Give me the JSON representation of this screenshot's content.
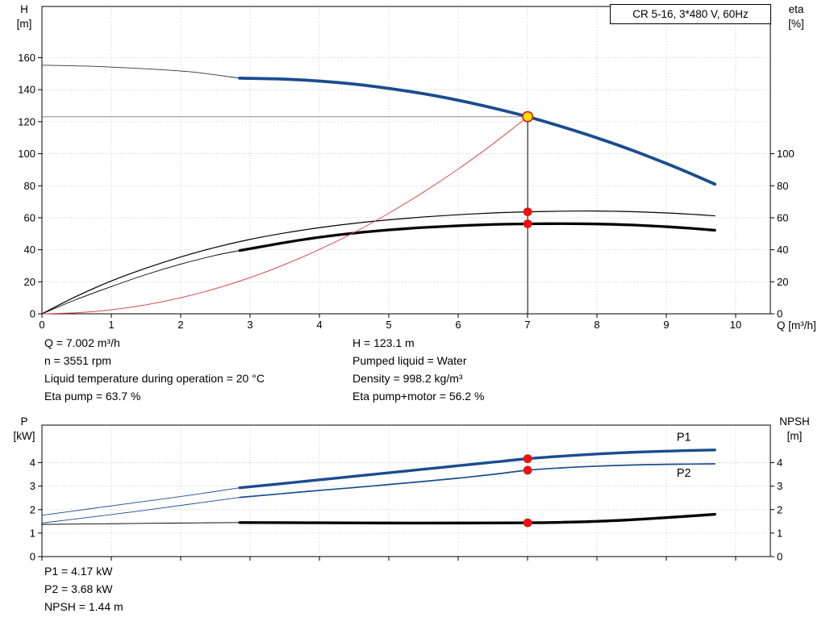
{
  "model_box": {
    "label": "CR 5-16, 3*480 V, 60Hz"
  },
  "axis_labels": {
    "top_left_sym": "H",
    "top_left_unit": "[m]",
    "top_right_sym": "eta",
    "top_right_unit": "[%]",
    "q_axis": "Q [m³/h]",
    "bottom_left_sym": "P",
    "bottom_left_unit": "[kW]",
    "bottom_right_sym": "NPSH",
    "bottom_right_unit": "[m]"
  },
  "results_top": {
    "col1": [
      "Q = 7.002 m³/h",
      "n = 3551 rpm",
      "Liquid temperature during operation = 20 °C",
      "Eta pump = 63.7 %"
    ],
    "col2": [
      "H = 123.1 m",
      "Pumped liquid = Water",
      "Density = 998.2 kg/m³",
      "Eta pump+motor = 56.2 %"
    ]
  },
  "results_bottom": [
    "P1 = 4.17 kW",
    "P2 = 3.68 kW",
    "NPSH = 1.44 m"
  ],
  "chart_data": [
    {
      "type": "line",
      "title": "CR 5-16, 3*480 V, 60Hz",
      "xlabel": "Q [m³/h]",
      "ylabel_left": "H [m]",
      "ylabel_right": "eta [%]",
      "xlim": [
        0,
        10.5
      ],
      "ylim_left": [
        0,
        192
      ],
      "ylim_right": [
        0,
        192
      ],
      "xticks": [
        0,
        1,
        2,
        3,
        4,
        5,
        6,
        7,
        8,
        9,
        10
      ],
      "yticks_left": [
        0,
        20,
        40,
        60,
        80,
        100,
        120,
        140,
        160
      ],
      "yticks_right": [
        0,
        20,
        40,
        60,
        80,
        100
      ],
      "grid": true,
      "show_xtick_labels": true,
      "duty_point": {
        "Q": 7.002,
        "H": 123.1,
        "eta_pump": 63.7,
        "eta_pump_motor": 56.2
      },
      "series": [
        {
          "name": "h-curve-lead",
          "color": "#333333",
          "width": 0.9,
          "points": [
            [
              0,
              155.3
            ],
            [
              0.8,
              154.5
            ],
            [
              1.6,
              152.8
            ],
            [
              2.2,
              150.9
            ],
            [
              2.85,
              147.2
            ]
          ]
        },
        {
          "name": "h-curve",
          "color": "#1a4c8f",
          "width": 3.8,
          "points": [
            [
              2.85,
              147.2
            ],
            [
              3.5,
              146.6
            ],
            [
              4,
              145.4
            ],
            [
              4.5,
              143.5
            ],
            [
              5,
              140.8
            ],
            [
              5.5,
              137.5
            ],
            [
              6,
              133.4
            ],
            [
              6.5,
              128.6
            ],
            [
              7.002,
              123.1
            ],
            [
              7.5,
              116.8
            ],
            [
              8,
              109.9
            ],
            [
              8.5,
              102.3
            ],
            [
              9,
              93.9
            ],
            [
              9.35,
              87.6
            ],
            [
              9.7,
              81
            ]
          ]
        },
        {
          "name": "eta-pump",
          "color": "#000000",
          "width": 1.2,
          "points": [
            [
              0,
              0
            ],
            [
              0.5,
              11
            ],
            [
              1,
              20.5
            ],
            [
              1.5,
              28.5
            ],
            [
              2,
              35.5
            ],
            [
              2.5,
              41.5
            ],
            [
              3,
              46.5
            ],
            [
              3.5,
              50.5
            ],
            [
              4,
              53.8
            ],
            [
              4.5,
              56.5
            ],
            [
              5,
              58.7
            ],
            [
              5.5,
              60.5
            ],
            [
              6,
              61.9
            ],
            [
              6.5,
              63
            ],
            [
              7.002,
              63.7
            ],
            [
              7.5,
              64.1
            ],
            [
              8,
              64.2
            ],
            [
              8.5,
              63.8
            ],
            [
              9,
              63
            ],
            [
              9.35,
              62.2
            ],
            [
              9.7,
              61.2
            ]
          ]
        },
        {
          "name": "eta-pump-motor-lead",
          "color": "#000000",
          "width": 0.9,
          "points": [
            [
              0,
              0
            ],
            [
              0.5,
              9
            ],
            [
              1,
              17
            ],
            [
              1.5,
              24.5
            ],
            [
              2,
              31
            ],
            [
              2.5,
              36.5
            ],
            [
              2.85,
              39.5
            ]
          ]
        },
        {
          "name": "eta-pump-motor",
          "color": "#000000",
          "width": 3.3,
          "points": [
            [
              2.85,
              39.5
            ],
            [
              3.5,
              44.5
            ],
            [
              4,
              47.8
            ],
            [
              4.5,
              50.4
            ],
            [
              5,
              52.4
            ],
            [
              5.5,
              53.9
            ],
            [
              6,
              55
            ],
            [
              6.5,
              55.8
            ],
            [
              7.002,
              56.2
            ],
            [
              7.5,
              56.3
            ],
            [
              8,
              56.1
            ],
            [
              8.5,
              55.5
            ],
            [
              9,
              54.4
            ],
            [
              9.35,
              53.4
            ],
            [
              9.7,
              52.2
            ]
          ]
        },
        {
          "name": "system-curve",
          "color": "#dd4a4a",
          "width": 1,
          "points": [
            [
              0,
              0
            ],
            [
              0.5,
              0.6
            ],
            [
              1,
              2.5
            ],
            [
              1.5,
              5.6
            ],
            [
              2,
              10
            ],
            [
              2.5,
              15.7
            ],
            [
              3,
              22.6
            ],
            [
              3.5,
              30.8
            ],
            [
              4,
              40.2
            ],
            [
              4.5,
              50.8
            ],
            [
              5,
              62.8
            ],
            [
              5.5,
              76
            ],
            [
              6,
              90.4
            ],
            [
              6.5,
              106.1
            ],
            [
              7.002,
              123.1
            ]
          ]
        }
      ],
      "marker_lines": [
        {
          "name": "duty-head-line",
          "color": "#8a8a8a",
          "width": 1,
          "from": [
            0,
            123.1
          ],
          "to": [
            7.002,
            123.1
          ]
        },
        {
          "name": "duty-flow-line",
          "color": "#000000",
          "width": 1,
          "from": [
            7.002,
            0
          ],
          "to": [
            7.002,
            123.1
          ]
        }
      ],
      "markers": [
        {
          "name": "duty-point",
          "x": 7.002,
          "y": 123.1,
          "r": 6.2,
          "fill": "#ffdd00",
          "stroke": "#e01010",
          "stroke_width": 1.6
        },
        {
          "name": "eta-pump-duty-point",
          "x": 7.002,
          "y": 63.7,
          "r": 5.4,
          "fill": "#ee1111"
        },
        {
          "name": "eta-pump-motor-duty-point",
          "x": 7.002,
          "y": 56.2,
          "r": 5.4,
          "fill": "#ee1111"
        }
      ],
      "curve_labels": []
    },
    {
      "type": "line",
      "title": "",
      "xlabel": "Q [m³/h]",
      "ylabel_left": "P [kW]",
      "ylabel_right": "NPSH [m]",
      "xlim": [
        0,
        10.5
      ],
      "ylim_left": [
        0,
        5.6
      ],
      "ylim_right": [
        0,
        5.6
      ],
      "xticks": [
        0,
        1,
        2,
        3,
        4,
        5,
        6,
        7,
        8,
        9,
        10
      ],
      "yticks_left": [
        0,
        1,
        2,
        3,
        4
      ],
      "yticks_right": [
        0,
        1,
        2,
        3,
        4
      ],
      "grid": true,
      "show_xtick_labels": false,
      "duty_point": {
        "Q": 7.002,
        "P1": 4.17,
        "P2": 3.68,
        "NPSH": 1.44
      },
      "series": [
        {
          "name": "p1-lead",
          "color": "#1a4c8f",
          "width": 0.9,
          "points": [
            [
              0,
              1.76
            ],
            [
              0.7,
              2.04
            ],
            [
              1.4,
              2.32
            ],
            [
              2.1,
              2.6
            ],
            [
              2.85,
              2.93
            ]
          ]
        },
        {
          "name": "p1",
          "color": "#1a4c8f",
          "width": 3.4,
          "points": [
            [
              2.85,
              2.93
            ],
            [
              3.5,
              3.12
            ],
            [
              4,
              3.27
            ],
            [
              4.5,
              3.42
            ],
            [
              5,
              3.57
            ],
            [
              5.5,
              3.72
            ],
            [
              6,
              3.87
            ],
            [
              6.5,
              4.02
            ],
            [
              7.002,
              4.17
            ],
            [
              7.5,
              4.28
            ],
            [
              8,
              4.37
            ],
            [
              8.5,
              4.44
            ],
            [
              9,
              4.49
            ],
            [
              9.35,
              4.52
            ],
            [
              9.7,
              4.54
            ]
          ]
        },
        {
          "name": "p2-lead",
          "color": "#1a4c8f",
          "width": 0.9,
          "points": [
            [
              0,
              1.43
            ],
            [
              0.7,
              1.68
            ],
            [
              1.4,
              1.94
            ],
            [
              2.1,
              2.22
            ],
            [
              2.85,
              2.52
            ]
          ]
        },
        {
          "name": "p2",
          "color": "#1a4c8f",
          "width": 1.7,
          "points": [
            [
              2.85,
              2.52
            ],
            [
              3.5,
              2.69
            ],
            [
              4,
              2.82
            ],
            [
              4.5,
              2.94
            ],
            [
              5,
              3.07
            ],
            [
              5.5,
              3.2
            ],
            [
              6,
              3.34
            ],
            [
              6.5,
              3.5
            ],
            [
              7.002,
              3.68
            ],
            [
              7.5,
              3.78
            ],
            [
              8,
              3.85
            ],
            [
              8.5,
              3.9
            ],
            [
              9,
              3.93
            ],
            [
              9.35,
              3.94
            ],
            [
              9.7,
              3.95
            ]
          ]
        },
        {
          "name": "npsh-lead",
          "color": "#000000",
          "width": 0.9,
          "points": [
            [
              0,
              1.37
            ],
            [
              1,
              1.4
            ],
            [
              2,
              1.43
            ],
            [
              2.85,
              1.45
            ]
          ]
        },
        {
          "name": "npsh",
          "color": "#000000",
          "width": 3.4,
          "points": [
            [
              2.85,
              1.45
            ],
            [
              4,
              1.44
            ],
            [
              5,
              1.43
            ],
            [
              6,
              1.43
            ],
            [
              7.002,
              1.44
            ],
            [
              7.5,
              1.46
            ],
            [
              8,
              1.5
            ],
            [
              8.5,
              1.57
            ],
            [
              9,
              1.66
            ],
            [
              9.35,
              1.73
            ],
            [
              9.7,
              1.8
            ]
          ]
        }
      ],
      "marker_lines": [],
      "markers": [
        {
          "name": "p1-duty-point",
          "x": 7.002,
          "y": 4.17,
          "r": 5.4,
          "fill": "#ee1111"
        },
        {
          "name": "p2-duty-point",
          "x": 7.002,
          "y": 3.68,
          "r": 5.4,
          "fill": "#ee1111"
        },
        {
          "name": "npsh-duty-point",
          "x": 7.002,
          "y": 1.44,
          "r": 5.4,
          "fill": "#ee1111"
        }
      ],
      "curve_labels": [
        {
          "text": "P1",
          "x": 9.15,
          "y": 4.93,
          "color": "#1f5fae"
        },
        {
          "text": "P2",
          "x": 9.15,
          "y": 3.4,
          "color": "#1f5fae"
        }
      ]
    }
  ],
  "colors": {
    "curve_blue": "#1a4c8f",
    "curve_black": "#000000",
    "system_red": "#dd4a4a",
    "duty_yellow": "#ffdd00",
    "duty_red": "#ee1111",
    "grid_gray": "#b5b5b5",
    "head_line_gray": "#8a8a8a"
  }
}
